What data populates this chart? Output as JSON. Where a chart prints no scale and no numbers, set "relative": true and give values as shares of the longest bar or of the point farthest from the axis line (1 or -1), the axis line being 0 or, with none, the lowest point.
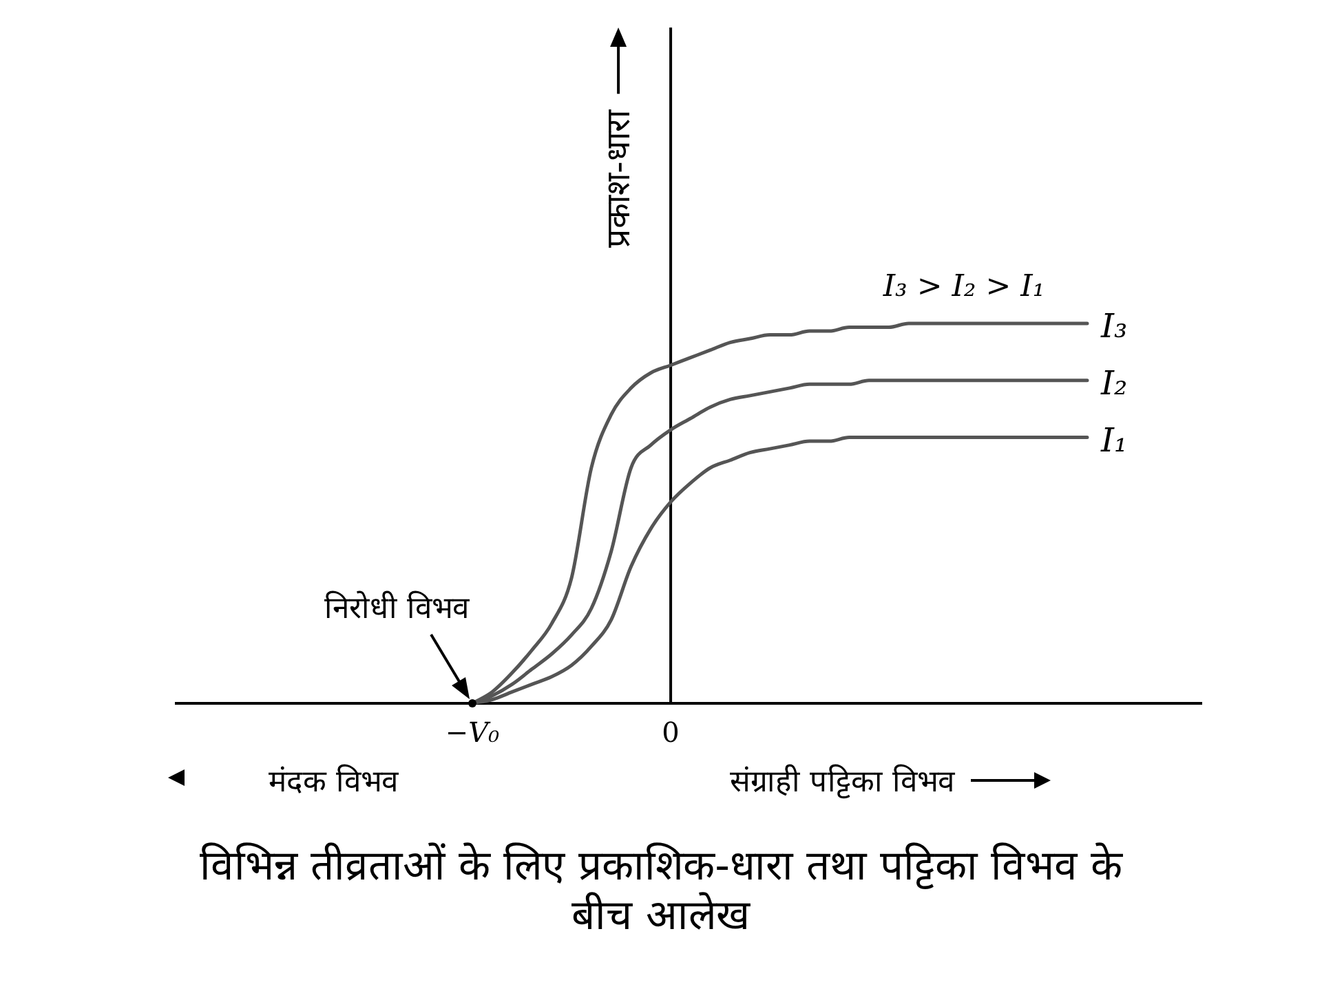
{
  "chart_data": {
    "type": "line",
    "title": "विभिन्न तीव्रताओं के लिए प्रकाशिक-धारा तथा पट्टिका विभव के बीच आलेख",
    "xlabel": "संग्राही पट्टिका विभव",
    "ylabel": "प्रकाश-धारा",
    "annotations": [
      "मंदक विभव",
      "I₃ > I₂ > I₁",
      {
        "text": "निरोधी विभव",
        "x": "−V₀",
        "y": 0
      }
    ],
    "relative": true,
    "tick_labels": "x",
    "marker": "none",
    "line_style": "solid",
    "categories": [
      null,
      null,
      null,
      null,
      null,
      null,
      null,
      null,
      null,
      null,
      null,
      null,
      null,
      null,
      null,
      "−V₀",
      null,
      null,
      null,
      null,
      null,
      null,
      null,
      null,
      null,
      "0",
      null,
      null,
      null,
      null,
      null,
      null,
      null,
      null,
      null,
      null,
      null,
      null,
      null,
      null,
      null,
      null,
      null,
      null,
      null,
      null,
      null,
      null,
      null,
      null,
      null,
      null
    ],
    "series": [
      {
        "name": "I₃",
        "color": "#555555",
        "values": [
          null,
          null,
          null,
          null,
          null,
          null,
          null,
          null,
          null,
          null,
          null,
          null,
          null,
          null,
          null,
          0,
          0.03,
          0.08,
          0.14,
          0.21,
          0.33,
          0.62,
          0.76,
          0.83,
          0.87,
          0.89,
          0.91,
          0.93,
          0.95,
          0.96,
          0.97,
          0.97,
          0.98,
          0.98,
          0.99,
          0.99,
          0.99,
          1,
          1,
          1,
          1,
          1,
          1,
          1,
          1,
          1,
          1,
          null,
          null,
          null,
          null,
          null
        ]
      },
      {
        "name": "I₂",
        "color": "#555555",
        "values": [
          null,
          null,
          null,
          null,
          null,
          null,
          null,
          null,
          null,
          null,
          null,
          null,
          null,
          null,
          null,
          0,
          0.02,
          0.05,
          0.09,
          0.13,
          0.18,
          0.25,
          0.4,
          0.62,
          0.68,
          0.72,
          0.75,
          0.78,
          0.8,
          0.81,
          0.82,
          0.83,
          0.84,
          0.84,
          0.84,
          0.85,
          0.85,
          0.85,
          0.85,
          0.85,
          0.85,
          0.85,
          0.85,
          0.85,
          0.85,
          0.85,
          0.85,
          null,
          null,
          null,
          null,
          null
        ]
      },
      {
        "name": "I₁",
        "color": "#555555",
        "values": [
          null,
          null,
          null,
          null,
          null,
          null,
          null,
          null,
          null,
          null,
          null,
          null,
          null,
          null,
          null,
          0,
          0.01,
          0.03,
          0.05,
          0.07,
          0.1,
          0.15,
          0.22,
          0.36,
          0.46,
          0.53,
          0.58,
          0.62,
          0.64,
          0.66,
          0.67,
          0.68,
          0.69,
          0.69,
          0.7,
          0.7,
          0.7,
          0.7,
          0.7,
          0.7,
          0.7,
          0.7,
          0.7,
          0.7,
          0.7,
          0.7,
          0.7,
          null,
          null,
          null,
          null,
          null
        ]
      }
    ]
  }
}
